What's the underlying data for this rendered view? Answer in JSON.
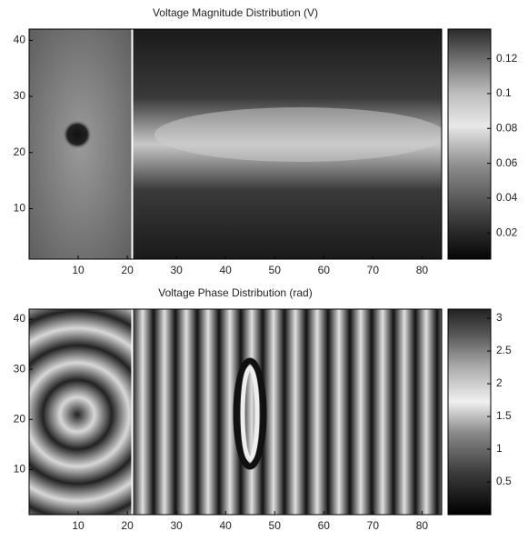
{
  "chart_data": [
    {
      "type": "heatmap",
      "title": "Voltage Magnitude Distribution (V)",
      "xlim": [
        0,
        84
      ],
      "ylim": [
        1,
        42
      ],
      "xticks": [
        10,
        20,
        30,
        40,
        50,
        60,
        70,
        80
      ],
      "yticks": [
        10,
        20,
        30,
        40
      ],
      "vline": 21,
      "colorbar": {
        "clim": [
          0.005,
          0.137
        ],
        "ticks": [
          0.02,
          0.04,
          0.06,
          0.08,
          0.1,
          0.12
        ]
      }
    },
    {
      "type": "heatmap",
      "title": "Voltage Phase Distribution (rad)",
      "xlim": [
        0,
        84
      ],
      "ylim": [
        1,
        42
      ],
      "xticks": [
        10,
        20,
        30,
        40,
        50,
        60,
        70,
        80
      ],
      "yticks": [
        10,
        20,
        30,
        40
      ],
      "vline": 21,
      "colorbar": {
        "clim": [
          0,
          3.14
        ],
        "ticks": [
          0.5,
          1,
          1.5,
          2,
          2.5,
          3
        ]
      }
    }
  ]
}
